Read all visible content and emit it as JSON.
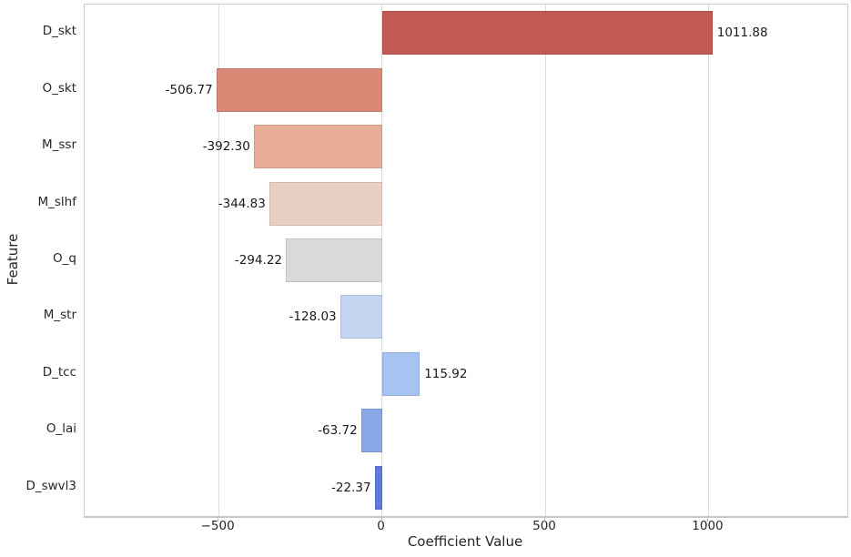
{
  "chart_data": {
    "type": "bar",
    "orientation": "horizontal",
    "title": "",
    "xlabel": "Coefficient Value",
    "ylabel": "Feature",
    "categories": [
      "D_skt",
      "O_skt",
      "M_ssr",
      "M_slhf",
      "O_q",
      "M_str",
      "D_tcc",
      "O_lai",
      "D_swvl3"
    ],
    "values": [
      1011.88,
      -506.77,
      -392.3,
      -344.83,
      -294.22,
      -128.03,
      115.92,
      -63.72,
      -22.37
    ],
    "value_labels": [
      "1011.88",
      "-506.77",
      "-392.30",
      "-344.83",
      "-294.22",
      "-128.03",
      "115.92",
      "-63.72",
      "-22.37"
    ],
    "bar_colors": [
      "#c05a52",
      "#d98876",
      "#e9ae96",
      "#ead0c2",
      "#d9d9d9",
      "#c5d5ef",
      "#a7c3f1",
      "#8aa7e7",
      "#5e7cd9"
    ],
    "xlim": [
      -910,
      1425
    ],
    "x_ticks": [
      -500,
      0,
      500,
      1000
    ],
    "x_tick_labels": [
      "−500",
      "0",
      "500",
      "1000"
    ],
    "grid": "vertical-only",
    "legend": "none",
    "colors": {
      "background": "#ffffff",
      "gridline": "#dcdcdc",
      "axis_border": "#cccccc",
      "text": "#262626"
    }
  }
}
